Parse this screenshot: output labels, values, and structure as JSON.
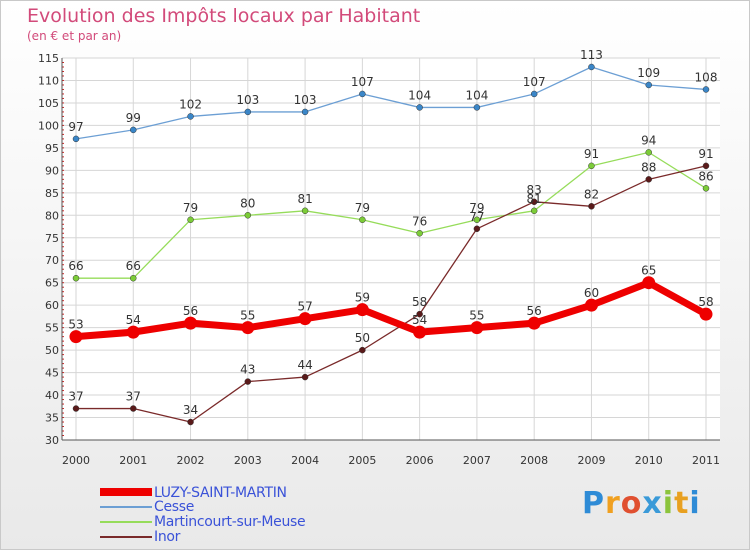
{
  "header": {
    "title": "Evolution des Impôts locaux par Habitant",
    "subtitle": "(en € et par an)"
  },
  "chart_data": {
    "type": "line",
    "title": "Evolution des Impôts locaux par Habitant",
    "subtitle": "(en € et par an)",
    "xlabel": "",
    "ylabel": "",
    "ylim": [
      30,
      115
    ],
    "yticks": [
      30,
      35,
      40,
      45,
      50,
      55,
      60,
      65,
      70,
      75,
      80,
      85,
      90,
      95,
      100,
      105,
      110,
      115
    ],
    "grid": true,
    "legend_position": "bottom-left",
    "categories": [
      "2000",
      "2001",
      "2002",
      "2003",
      "2004",
      "2005",
      "2006",
      "2007",
      "2008",
      "2009",
      "2010",
      "2011"
    ],
    "series": [
      {
        "name": "LUZY-SAINT-MARTIN",
        "color": "#ee0000",
        "values": [
          53,
          54,
          56,
          55,
          57,
          59,
          54,
          55,
          56,
          60,
          65,
          58
        ],
        "style": "thick"
      },
      {
        "name": "Cesse",
        "color": "#6c9fd4",
        "marker_color": "#3a86c8",
        "values": [
          97,
          99,
          102,
          103,
          103,
          107,
          104,
          104,
          107,
          113,
          109,
          108
        ],
        "style": "thin"
      },
      {
        "name": "Martincourt-sur-Meuse",
        "color": "#96dc5a",
        "marker_color": "#7ccc38",
        "values": [
          66,
          66,
          79,
          80,
          81,
          79,
          76,
          79,
          81,
          91,
          94,
          86
        ],
        "style": "thin"
      },
      {
        "name": "Inor",
        "color": "#7a2a2a",
        "marker_color": "#5a1a1a",
        "values": [
          37,
          37,
          34,
          43,
          44,
          50,
          58,
          77,
          83,
          82,
          88,
          91
        ],
        "style": "thin"
      }
    ]
  },
  "logo": {
    "letters": [
      "P",
      "r",
      "o",
      "x",
      "i",
      "t",
      "i"
    ],
    "colors": [
      "#2e8bd6",
      "#f0a020",
      "#e05030",
      "#3a9ad8",
      "#8cc43c",
      "#e8a020",
      "#2e8bd6"
    ]
  }
}
